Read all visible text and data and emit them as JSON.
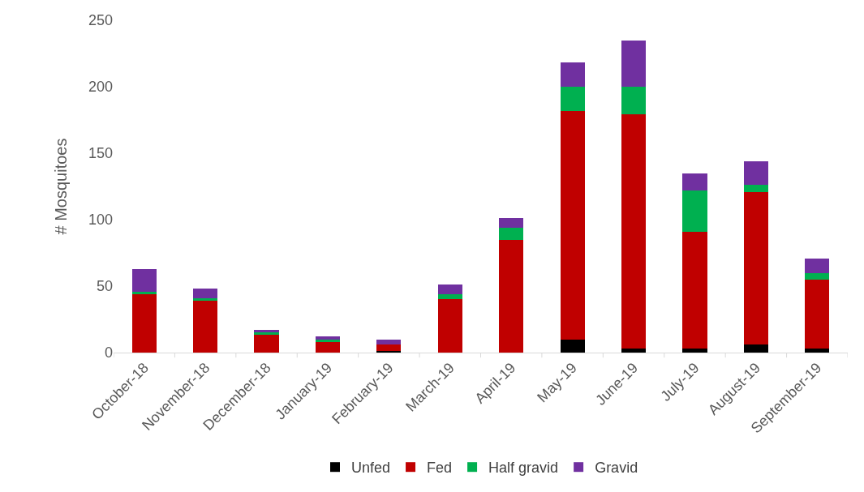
{
  "chart_data": {
    "type": "bar",
    "stacked": true,
    "ylabel": "# Mosquitoes",
    "categories": [
      "October-18",
      "November-18",
      "December-18",
      "January-19",
      "February-19",
      "March-19",
      "April-19",
      "May-19",
      "June-19",
      "July-19",
      "August-19",
      "September-19"
    ],
    "series": [
      {
        "name": "Unfed",
        "color": "#000000",
        "values": [
          0,
          0,
          0,
          0,
          1,
          0,
          0,
          10,
          3,
          3,
          6,
          3
        ]
      },
      {
        "name": "Fed",
        "color": "#c00000",
        "values": [
          44,
          39,
          14,
          8,
          5,
          40,
          85,
          172,
          176,
          88,
          115,
          52
        ]
      },
      {
        "name": "Half gravid",
        "color": "#00b050",
        "values": [
          2,
          2,
          1,
          2,
          0,
          4,
          9,
          18,
          21,
          31,
          5,
          5
        ]
      },
      {
        "name": "Gravid",
        "color": "#7030a0",
        "values": [
          17,
          7,
          2,
          2,
          4,
          7,
          7,
          18,
          35,
          13,
          18,
          11
        ]
      }
    ],
    "ylim": [
      0,
      250
    ],
    "yticks": [
      0,
      50,
      100,
      150,
      200,
      250
    ],
    "grid": false,
    "legend": "bottom"
  }
}
